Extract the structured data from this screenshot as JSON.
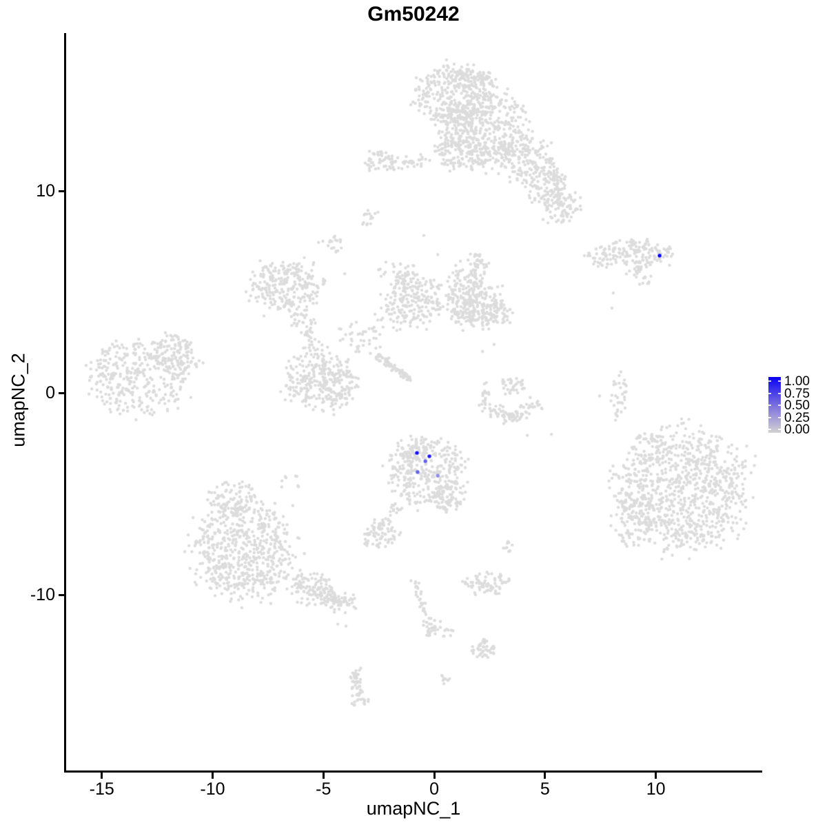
{
  "chart_data": {
    "type": "scatter",
    "title": "Gm50242",
    "xlabel": "umapNC_1",
    "ylabel": "umapNC_2",
    "xlim": [
      -16.64,
      14.77
    ],
    "ylim": [
      -18.7,
      17.82
    ],
    "xticks": [
      -15,
      -10,
      -5,
      0,
      5,
      10
    ],
    "yticks": [
      10,
      0,
      -10
    ],
    "grid": false,
    "point_color_low": "#DCDCDC",
    "point_color_high": "#0000FF",
    "legend": {
      "position": "right",
      "labels": [
        "1.00",
        "0.75",
        "0.50",
        "0.25",
        "0.00"
      ],
      "gradient": [
        "#0B02F5",
        "#8379DC",
        "#D2D2D2"
      ]
    },
    "highlighted_points": [
      {
        "x": 10.17,
        "y": 6.8,
        "value": 1.0
      },
      {
        "x": -0.78,
        "y": -2.97,
        "value": 0.92
      },
      {
        "x": -0.22,
        "y": -3.14,
        "value": 0.88
      },
      {
        "x": -0.4,
        "y": -3.38,
        "value": 0.55
      },
      {
        "x": -0.75,
        "y": -3.92,
        "value": 0.55
      },
      {
        "x": 0.16,
        "y": -4.1,
        "value": 0.35
      }
    ],
    "background_clusters": [
      {
        "cx": 0.93,
        "cy": 14.68,
        "rx": 1.75,
        "ry": 1.55,
        "n": 330
      },
      {
        "cx": 2.33,
        "cy": 13.1,
        "rx": 1.95,
        "ry": 1.9,
        "n": 380
      },
      {
        "cx": 1.31,
        "cy": 12.0,
        "rx": 1.25,
        "ry": 1.05,
        "n": 130
      },
      {
        "cx": 1.71,
        "cy": 15.5,
        "rx": 0.95,
        "ry": 0.55,
        "n": 60
      },
      {
        "cx": 3.89,
        "cy": 11.65,
        "rx": 1.4,
        "ry": 1.2,
        "n": 150
      },
      {
        "cx": 4.98,
        "cy": 10.5,
        "rx": 0.95,
        "ry": 1.2,
        "n": 90
      },
      {
        "cx": 5.66,
        "cy": 9.25,
        "rx": 0.8,
        "ry": 0.95,
        "n": 60
      },
      {
        "cx": -2.58,
        "cy": 11.55,
        "rx": 0.65,
        "ry": 0.5,
        "n": 28
      },
      {
        "cx": 9.17,
        "cy": 6.9,
        "rx": 1.75,
        "ry": 0.68,
        "n": 150
      },
      {
        "cx": 9.48,
        "cy": 5.65,
        "rx": 0.45,
        "ry": 0.3,
        "n": 10
      },
      {
        "cx": 8.3,
        "cy": 0.1,
        "rx": 0.38,
        "ry": 1.15,
        "n": 32
      },
      {
        "cx": -13.37,
        "cy": 0.75,
        "rx": 2.2,
        "ry": 1.9,
        "n": 340
      },
      {
        "cx": -11.82,
        "cy": 2.0,
        "rx": 0.95,
        "ry": 0.85,
        "n": 90
      },
      {
        "cx": -10.95,
        "cy": 1.45,
        "rx": 0.55,
        "ry": 0.6,
        "n": 22
      },
      {
        "cx": -6.69,
        "cy": 5.4,
        "rx": 1.65,
        "ry": 1.28,
        "n": 250
      },
      {
        "cx": -5.13,
        "cy": 0.6,
        "rx": 1.65,
        "ry": 1.42,
        "n": 300
      },
      {
        "cx": -0.93,
        "cy": 4.65,
        "rx": 1.32,
        "ry": 1.38,
        "n": 230
      },
      {
        "cx": 1.49,
        "cy": 4.85,
        "rx": 0.88,
        "ry": 1.5,
        "n": 120
      },
      {
        "cx": 1.87,
        "cy": 4.44,
        "rx": 1.25,
        "ry": 1.18,
        "n": 170
      },
      {
        "cx": 2.8,
        "cy": 3.92,
        "rx": 0.78,
        "ry": 0.68,
        "n": 55
      },
      {
        "cx": 2.02,
        "cy": 6.3,
        "rx": 0.48,
        "ry": 0.78,
        "n": 35
      },
      {
        "cx": -3.42,
        "cy": 2.75,
        "rx": 0.95,
        "ry": 0.78,
        "n": 32
      },
      {
        "cx": -1.71,
        "cy": 6.1,
        "rx": 0.85,
        "ry": 0.55,
        "n": 22
      },
      {
        "cx": -2.64,
        "cy": 3.4,
        "rx": 1.25,
        "ry": 1.25,
        "n": 14
      },
      {
        "cx": 3.58,
        "cy": 0.4,
        "rx": 0.58,
        "ry": 0.52,
        "n": 35
      },
      {
        "cx": 2.3,
        "cy": 0.15,
        "rx": 0.45,
        "ry": 0.4,
        "n": 12
      },
      {
        "cx": -0.37,
        "cy": -3.85,
        "rx": 1.72,
        "ry": 1.62,
        "n": 300
      },
      {
        "cx": -0.93,
        "cy": -2.8,
        "rx": 0.78,
        "ry": 0.58,
        "n": 60
      },
      {
        "cx": 0.56,
        "cy": -5.2,
        "rx": 0.82,
        "ry": 0.66,
        "n": 70
      },
      {
        "cx": -2.46,
        "cy": -7.05,
        "rx": 0.8,
        "ry": 0.62,
        "n": 70
      },
      {
        "cx": 11.26,
        "cy": -4.85,
        "rx": 2.75,
        "ry": 2.95,
        "n": 850
      },
      {
        "cx": 9.02,
        "cy": -6.3,
        "rx": 1.1,
        "ry": 1.4,
        "n": 85
      },
      {
        "cx": 9.64,
        "cy": -2.75,
        "rx": 0.8,
        "ry": 0.92,
        "n": 40
      },
      {
        "cx": 8.4,
        "cy": -4.45,
        "rx": 0.55,
        "ry": 1.3,
        "n": 22
      },
      {
        "cx": -8.64,
        "cy": -7.85,
        "rx": 2.35,
        "ry": 2.45,
        "n": 600
      },
      {
        "cx": -9.11,
        "cy": -5.2,
        "rx": 1.05,
        "ry": 0.92,
        "n": 90
      },
      {
        "cx": -5.6,
        "cy": -9.75,
        "rx": 1.1,
        "ry": 0.75,
        "n": 60
      },
      {
        "cx": -4.2,
        "cy": -10.4,
        "rx": 0.8,
        "ry": 0.52,
        "n": 35
      },
      {
        "cx": -6.53,
        "cy": -4.45,
        "rx": 0.7,
        "ry": 0.4,
        "n": 8
      },
      {
        "cx": 2.49,
        "cy": -9.5,
        "rx": 0.88,
        "ry": 0.62,
        "n": 60
      },
      {
        "cx": 1.62,
        "cy": -9.4,
        "rx": 0.35,
        "ry": 0.3,
        "n": 12
      },
      {
        "cx": -0.16,
        "cy": -11.65,
        "rx": 0.45,
        "ry": 0.42,
        "n": 25
      },
      {
        "cx": 0.62,
        "cy": -11.9,
        "rx": 0.4,
        "ry": 0.22,
        "n": 8
      },
      {
        "cx": 2.24,
        "cy": -12.65,
        "rx": 0.55,
        "ry": 0.52,
        "n": 45
      },
      {
        "cx": 3.33,
        "cy": -7.6,
        "rx": 0.28,
        "ry": 0.32,
        "n": 10
      },
      {
        "cx": 0.53,
        "cy": -14.05,
        "rx": 0.22,
        "ry": 0.32,
        "n": 8
      },
      {
        "cx": -2.89,
        "cy": 8.65,
        "rx": 0.36,
        "ry": 0.42,
        "n": 15
      },
      {
        "cx": -4.54,
        "cy": 7.35,
        "rx": 0.42,
        "ry": 0.46,
        "n": 18
      }
    ],
    "background_strands": [
      {
        "x1": -3.11,
        "y1": 11.25,
        "x2": -0.16,
        "y2": 11.55,
        "w": 0.35,
        "n": 55
      },
      {
        "x1": 5.13,
        "y1": 11.1,
        "x2": 6.16,
        "y2": 8.85,
        "w": 0.5,
        "n": 70
      },
      {
        "x1": 6.75,
        "y1": 6.96,
        "x2": 7.95,
        "y2": 6.35,
        "w": 0.25,
        "n": 22
      },
      {
        "x1": 8.77,
        "y1": 5.75,
        "x2": 9.39,
        "y2": 6.2,
        "w": 0.2,
        "n": 12
      },
      {
        "x1": -6.16,
        "y1": 4.05,
        "x2": -5.35,
        "y2": 2.0,
        "w": 0.45,
        "n": 55
      },
      {
        "x1": -2.55,
        "y1": 1.9,
        "x2": -1.06,
        "y2": 0.6,
        "w": 0.16,
        "n": 90
      },
      {
        "x1": 2.02,
        "y1": -0.4,
        "x2": 3.42,
        "y2": -1.35,
        "w": 0.35,
        "n": 45
      },
      {
        "x1": 3.42,
        "y1": -1.35,
        "x2": 4.73,
        "y2": -0.5,
        "w": 0.35,
        "n": 40
      },
      {
        "x1": -1.62,
        "y1": -5.55,
        "x2": -2.43,
        "y2": -6.6,
        "w": 0.3,
        "n": 22
      },
      {
        "x1": -6.37,
        "y1": -9.15,
        "x2": -3.89,
        "y2": -10.6,
        "w": 0.5,
        "n": 90
      },
      {
        "x1": -0.93,
        "y1": -9.2,
        "x2": -0.25,
        "y2": -11.45,
        "w": 0.22,
        "n": 30
      },
      {
        "x1": -3.67,
        "y1": -13.6,
        "x2": -3.3,
        "y2": -15.45,
        "w": 0.3,
        "n": 60
      }
    ],
    "background_dots": [
      [
        8.08,
        4.95
      ],
      [
        8.02,
        4.2
      ],
      [
        4.2,
        -2.1
      ],
      [
        -4.35,
        -11.45
      ],
      [
        -3.98,
        -11.55
      ],
      [
        -4.04,
        5.9
      ],
      [
        -5.22,
        7.45
      ],
      [
        8.18,
        -1.35
      ],
      [
        7.46,
        -0.15
      ],
      [
        2.7,
        2.4
      ],
      [
        2.18,
        2.05
      ],
      [
        -2.64,
        3.05
      ],
      [
        0.16,
        6.85
      ],
      [
        -0.47,
        7.8
      ],
      [
        5.29,
        -2.05
      ]
    ]
  }
}
